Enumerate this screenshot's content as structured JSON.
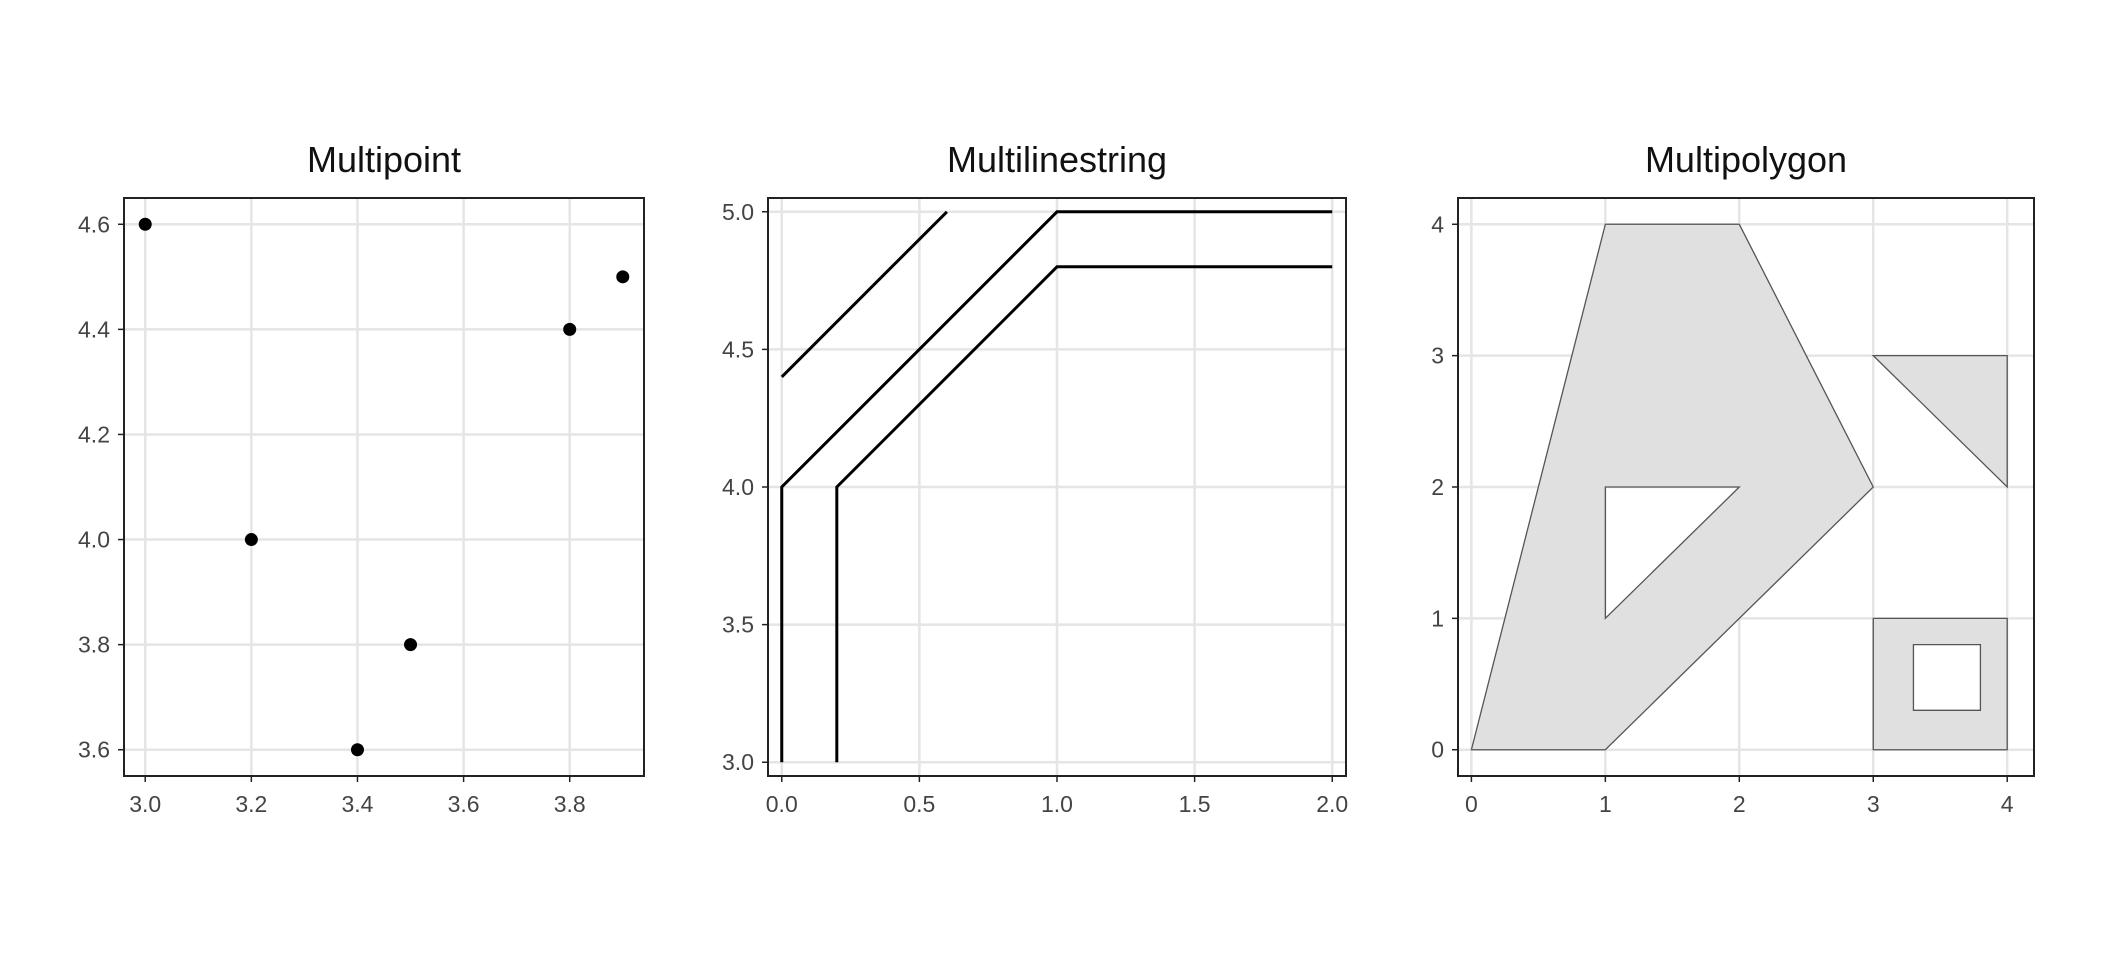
{
  "colors": {
    "grid": "#e5e5e5",
    "frame": "#222222",
    "mark": "#000000",
    "polygon_fill": "#e0e0e0",
    "polygon_stroke": "#555555",
    "hole_fill": "#ffffff"
  },
  "chart_data": [
    {
      "type": "scatter",
      "title": "Multipoint",
      "xlabel": "",
      "ylabel": "",
      "xlim": [
        2.96,
        3.94
      ],
      "ylim": [
        3.55,
        4.65
      ],
      "xticks": [
        "3.0",
        "3.2",
        "3.4",
        "3.6",
        "3.8"
      ],
      "xtick_values": [
        3.0,
        3.2,
        3.4,
        3.6,
        3.8
      ],
      "yticks": [
        "3.6",
        "3.8",
        "4.0",
        "4.2",
        "4.4",
        "4.6"
      ],
      "ytick_values": [
        3.6,
        3.8,
        4.0,
        4.2,
        4.4,
        4.6
      ],
      "grid": true,
      "points": [
        {
          "x": 3.0,
          "y": 4.6
        },
        {
          "x": 3.2,
          "y": 4.0
        },
        {
          "x": 3.4,
          "y": 3.6
        },
        {
          "x": 3.5,
          "y": 3.8
        },
        {
          "x": 3.8,
          "y": 4.4
        },
        {
          "x": 3.9,
          "y": 4.5
        }
      ]
    },
    {
      "type": "line",
      "title": "Multilinestring",
      "xlabel": "",
      "ylabel": "",
      "xlim": [
        -0.05,
        2.05
      ],
      "ylim": [
        2.95,
        5.05
      ],
      "xticks": [
        "0.0",
        "0.5",
        "1.0",
        "1.5",
        "2.0"
      ],
      "xtick_values": [
        0.0,
        0.5,
        1.0,
        1.5,
        2.0
      ],
      "yticks": [
        "3.0",
        "3.5",
        "4.0",
        "4.5",
        "5.0"
      ],
      "ytick_values": [
        3.0,
        3.5,
        4.0,
        4.5,
        5.0
      ],
      "grid": true,
      "lines": [
        [
          [
            0.0,
            4.4
          ],
          [
            0.6,
            5.0
          ]
        ],
        [
          [
            0.0,
            3.0
          ],
          [
            0.0,
            4.0
          ],
          [
            1.0,
            5.0
          ],
          [
            2.0,
            5.0
          ]
        ],
        [
          [
            0.2,
            3.0
          ],
          [
            0.2,
            4.0
          ],
          [
            1.0,
            4.8
          ],
          [
            2.0,
            4.8
          ]
        ]
      ]
    },
    {
      "type": "polygon",
      "title": "Multipolygon",
      "xlabel": "",
      "ylabel": "",
      "xlim": [
        -0.1,
        4.2
      ],
      "ylim": [
        -0.2,
        4.2
      ],
      "xticks": [
        "0",
        "1",
        "2",
        "3",
        "4"
      ],
      "xtick_values": [
        0,
        1,
        2,
        3,
        4
      ],
      "yticks": [
        "0",
        "1",
        "2",
        "3",
        "4"
      ],
      "ytick_values": [
        0,
        1,
        2,
        3,
        4
      ],
      "grid": true,
      "polygons": [
        {
          "outer": [
            [
              0,
              0
            ],
            [
              1,
              4
            ],
            [
              2,
              4
            ],
            [
              3,
              2
            ],
            [
              1,
              0
            ]
          ],
          "holes": [
            [
              [
                1,
                1
              ],
              [
                1,
                2
              ],
              [
                2,
                2
              ]
            ]
          ]
        },
        {
          "outer": [
            [
              3,
              3
            ],
            [
              4,
              3
            ],
            [
              4,
              2
            ]
          ],
          "holes": []
        },
        {
          "outer": [
            [
              3,
              0
            ],
            [
              4,
              0
            ],
            [
              4,
              1
            ],
            [
              3,
              1
            ]
          ],
          "holes": [
            [
              [
                3.3,
                0.3
              ],
              [
                3.8,
                0.3
              ],
              [
                3.8,
                0.8
              ],
              [
                3.3,
                0.8
              ]
            ]
          ]
        }
      ]
    }
  ]
}
